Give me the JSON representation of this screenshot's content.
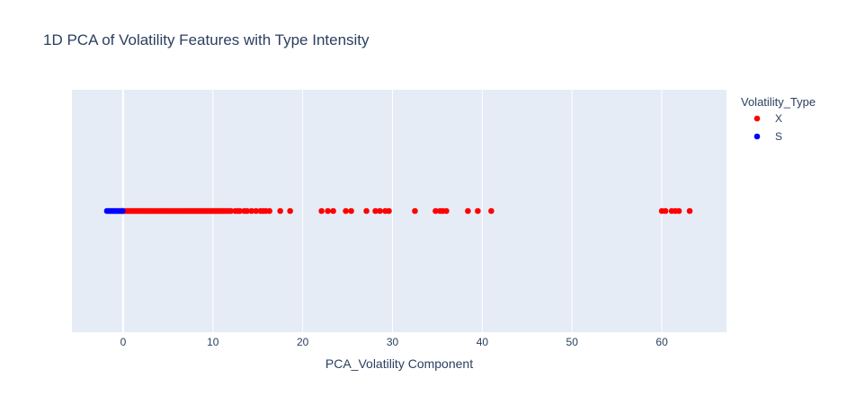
{
  "chart_data": {
    "type": "scatter",
    "title": "1D PCA of Volatility Features with Type Intensity",
    "xlabel": "PCA_Volatility Component",
    "ylabel": "",
    "xlim": [
      -5.7,
      67.2
    ],
    "xticks": [
      0,
      10,
      20,
      30,
      40,
      50,
      60
    ],
    "grid": true,
    "legend": {
      "title": "Volatility_Type",
      "placement": "top-right"
    },
    "series": [
      {
        "name": "X",
        "color": "#ff0000",
        "x": [
          0.0,
          0.2,
          0.4,
          0.6,
          0.8,
          1.0,
          1.2,
          1.4,
          1.6,
          1.8,
          2.0,
          2.2,
          2.4,
          2.6,
          2.8,
          3.0,
          3.2,
          3.4,
          3.6,
          3.8,
          4.0,
          4.2,
          4.4,
          4.6,
          4.8,
          5.0,
          5.2,
          5.4,
          5.6,
          5.8,
          6.0,
          6.2,
          6.4,
          6.6,
          6.8,
          7.0,
          7.2,
          7.4,
          7.6,
          7.8,
          8.0,
          8.2,
          8.4,
          8.6,
          8.8,
          9.0,
          9.2,
          9.4,
          9.6,
          9.8,
          10.0,
          10.2,
          10.4,
          10.6,
          10.8,
          11.0,
          11.2,
          11.4,
          11.6,
          11.8,
          12.0,
          12.5,
          12.8,
          13.0,
          13.5,
          13.8,
          14.3,
          14.8,
          15.3,
          15.6,
          15.9,
          16.3,
          17.5,
          18.6,
          22.1,
          22.8,
          23.4,
          24.8,
          25.4,
          27.1,
          28.1,
          28.6,
          29.2,
          29.6,
          32.5,
          34.8,
          35.3,
          35.6,
          36.0,
          38.4,
          39.5,
          41.0,
          60.0,
          60.4,
          61.1,
          61.5,
          61.9,
          63.1
        ]
      },
      {
        "name": "S",
        "color": "#0000ff",
        "x": [
          -1.8,
          -1.6,
          -1.4,
          -1.2,
          -1.0,
          -0.8,
          -0.6,
          -0.4,
          -0.2,
          -0.05
        ]
      }
    ]
  }
}
